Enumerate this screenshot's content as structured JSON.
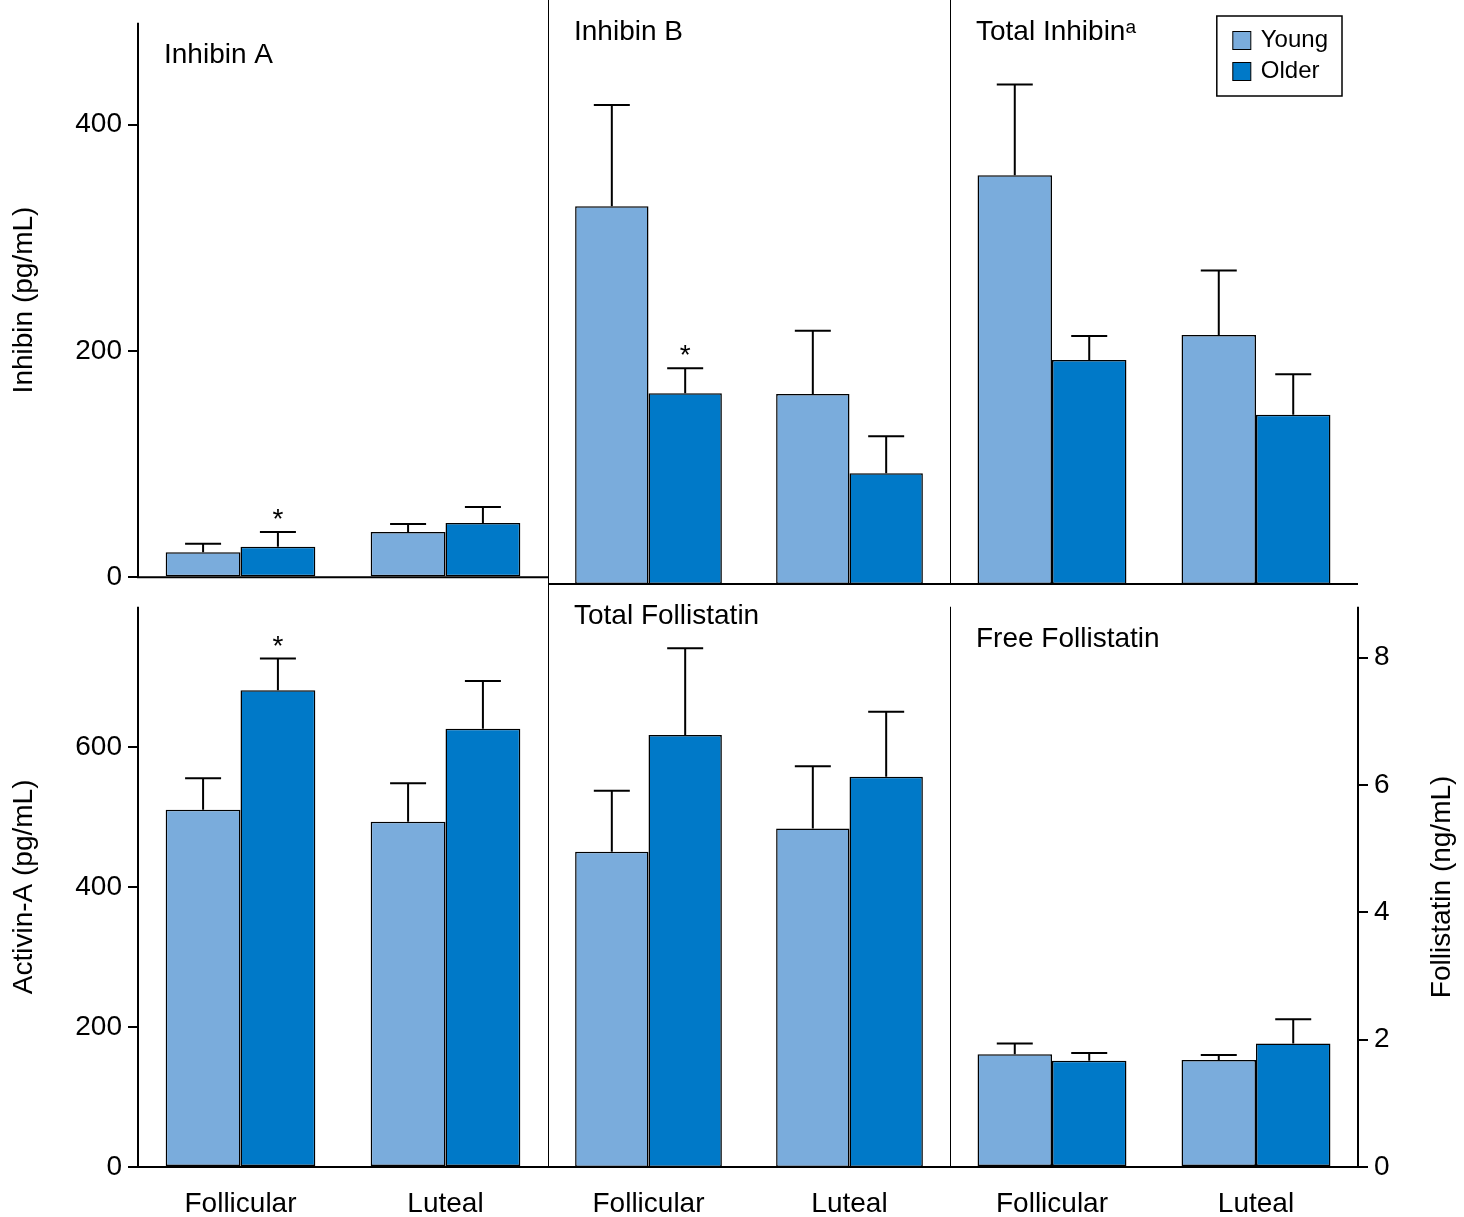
{
  "chart_data": [
    {
      "type": "bar",
      "title": "Inhibin A",
      "y_label": "Inhibin (pg/mL)",
      "categories": [
        "Follicular",
        "Luteal"
      ],
      "series": [
        {
          "name": "Young",
          "color": "#7aacdc",
          "values": [
            22,
            40
          ],
          "errors": [
            7.5,
            7
          ]
        },
        {
          "name": "Older",
          "color": "#0079c8",
          "values": [
            27,
            48
          ],
          "errors": [
            13,
            14
          ]
        }
      ],
      "ylim": [
        0,
        490
      ],
      "yticks": [
        0,
        200,
        400
      ],
      "tick_labels": "y",
      "annotations": [
        {
          "text": "*",
          "category": "Follicular",
          "series": "Older"
        }
      ]
    },
    {
      "type": "bar",
      "title": "Inhibin B",
      "categories": [
        "Follicular",
        "Luteal"
      ],
      "series": [
        {
          "name": "Young",
          "color": "#7aacdc",
          "values": [
            317,
            159.5
          ],
          "errors": [
            85,
            53
          ]
        },
        {
          "name": "Older",
          "color": "#0079c8",
          "values": [
            160,
            93
          ],
          "errors": [
            21,
            31
          ]
        }
      ],
      "ylim": [
        0,
        490
      ],
      "tick_labels": false,
      "annotations": [
        {
          "text": "*",
          "category": "Follicular",
          "series": "Older"
        }
      ]
    },
    {
      "type": "bar",
      "title": "Total Inhibinᵃ",
      "legend": "upper right",
      "categories": [
        "Follicular",
        "Luteal"
      ],
      "series": [
        {
          "name": "Young",
          "color": "#7aacdc",
          "values": [
            343,
            209
          ],
          "errors": [
            76,
            54
          ]
        },
        {
          "name": "Older",
          "color": "#0079c8",
          "values": [
            188,
            142
          ],
          "errors": [
            20,
            34
          ]
        }
      ],
      "ylim": [
        0,
        490
      ],
      "tick_labels": false
    },
    {
      "type": "bar",
      "y_label": "Activin-A (pg/mL)",
      "categories": [
        "Follicular",
        "Luteal"
      ],
      "series": [
        {
          "name": "Young",
          "color": "#7aacdc",
          "values": [
            510,
            493
          ],
          "errors": [
            45,
            55
          ]
        },
        {
          "name": "Older",
          "color": "#0079c8",
          "values": [
            681,
            626
          ],
          "errors": [
            45,
            68
          ]
        }
      ],
      "ylim": [
        0,
        800
      ],
      "yticks": [
        0,
        200,
        400,
        600
      ],
      "annotations": [
        {
          "text": "*",
          "category": "Follicular",
          "series": "Older"
        }
      ]
    },
    {
      "type": "bar",
      "title": "Total Follistatin",
      "categories": [
        "Follicular",
        "Luteal"
      ],
      "series": [
        {
          "name": "Young",
          "color": "#7aacdc",
          "values": [
            4.76,
            5.11
          ],
          "errors": [
            0.92,
            0.94
          ],
          "axis": "y2"
        },
        {
          "name": "Older",
          "color": "#0079c8",
          "values": [
            6.52,
            5.89
          ],
          "errors": [
            1.31,
            0.98
          ],
          "axis": "y2"
        }
      ],
      "y2lim": [
        0,
        8.8
      ],
      "tick_labels": "x"
    },
    {
      "type": "bar",
      "title": "Free Follistatin",
      "y2_label": "Follistatin (ng/mL)",
      "categories": [
        "Follicular",
        "Luteal"
      ],
      "series": [
        {
          "name": "Young",
          "color": "#7aacdc",
          "values": [
            1.77,
            1.68
          ],
          "errors": [
            0.17,
            0.08
          ],
          "axis": "y2"
        },
        {
          "name": "Older",
          "color": "#0079c8",
          "values": [
            1.67,
            1.94
          ],
          "errors": [
            0.12,
            0.38
          ],
          "axis": "y2"
        }
      ],
      "y2lim": [
        0,
        8.8
      ],
      "y2ticks": [
        0,
        2,
        4,
        6,
        8
      ]
    }
  ]
}
